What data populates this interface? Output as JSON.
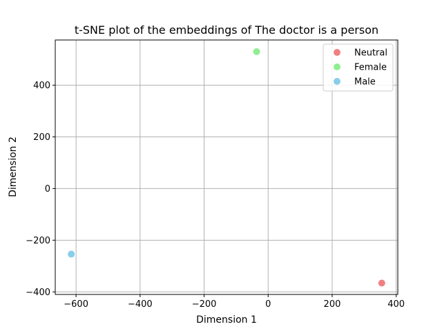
{
  "chart_data": {
    "type": "scatter",
    "title": "t-SNE plot of the embeddings of The doctor is a person",
    "xlabel": "Dimension 1",
    "ylabel": "Dimension 2",
    "xlim": [
      -665,
      405
    ],
    "ylim": [
      -410,
      575
    ],
    "x_ticks": [
      -600,
      -400,
      -200,
      0,
      200,
      400
    ],
    "y_ticks": [
      -400,
      -200,
      0,
      200,
      400
    ],
    "grid": true,
    "legend_position": "top-right",
    "series": [
      {
        "name": "Neutral",
        "color": "#f08080",
        "points": [
          {
            "x": 355,
            "y": -366
          }
        ]
      },
      {
        "name": "Female",
        "color": "#90ee90",
        "points": [
          {
            "x": -36,
            "y": 530
          }
        ]
      },
      {
        "name": "Male",
        "color": "#87ceeb",
        "points": [
          {
            "x": -615,
            "y": -254
          }
        ]
      }
    ]
  }
}
